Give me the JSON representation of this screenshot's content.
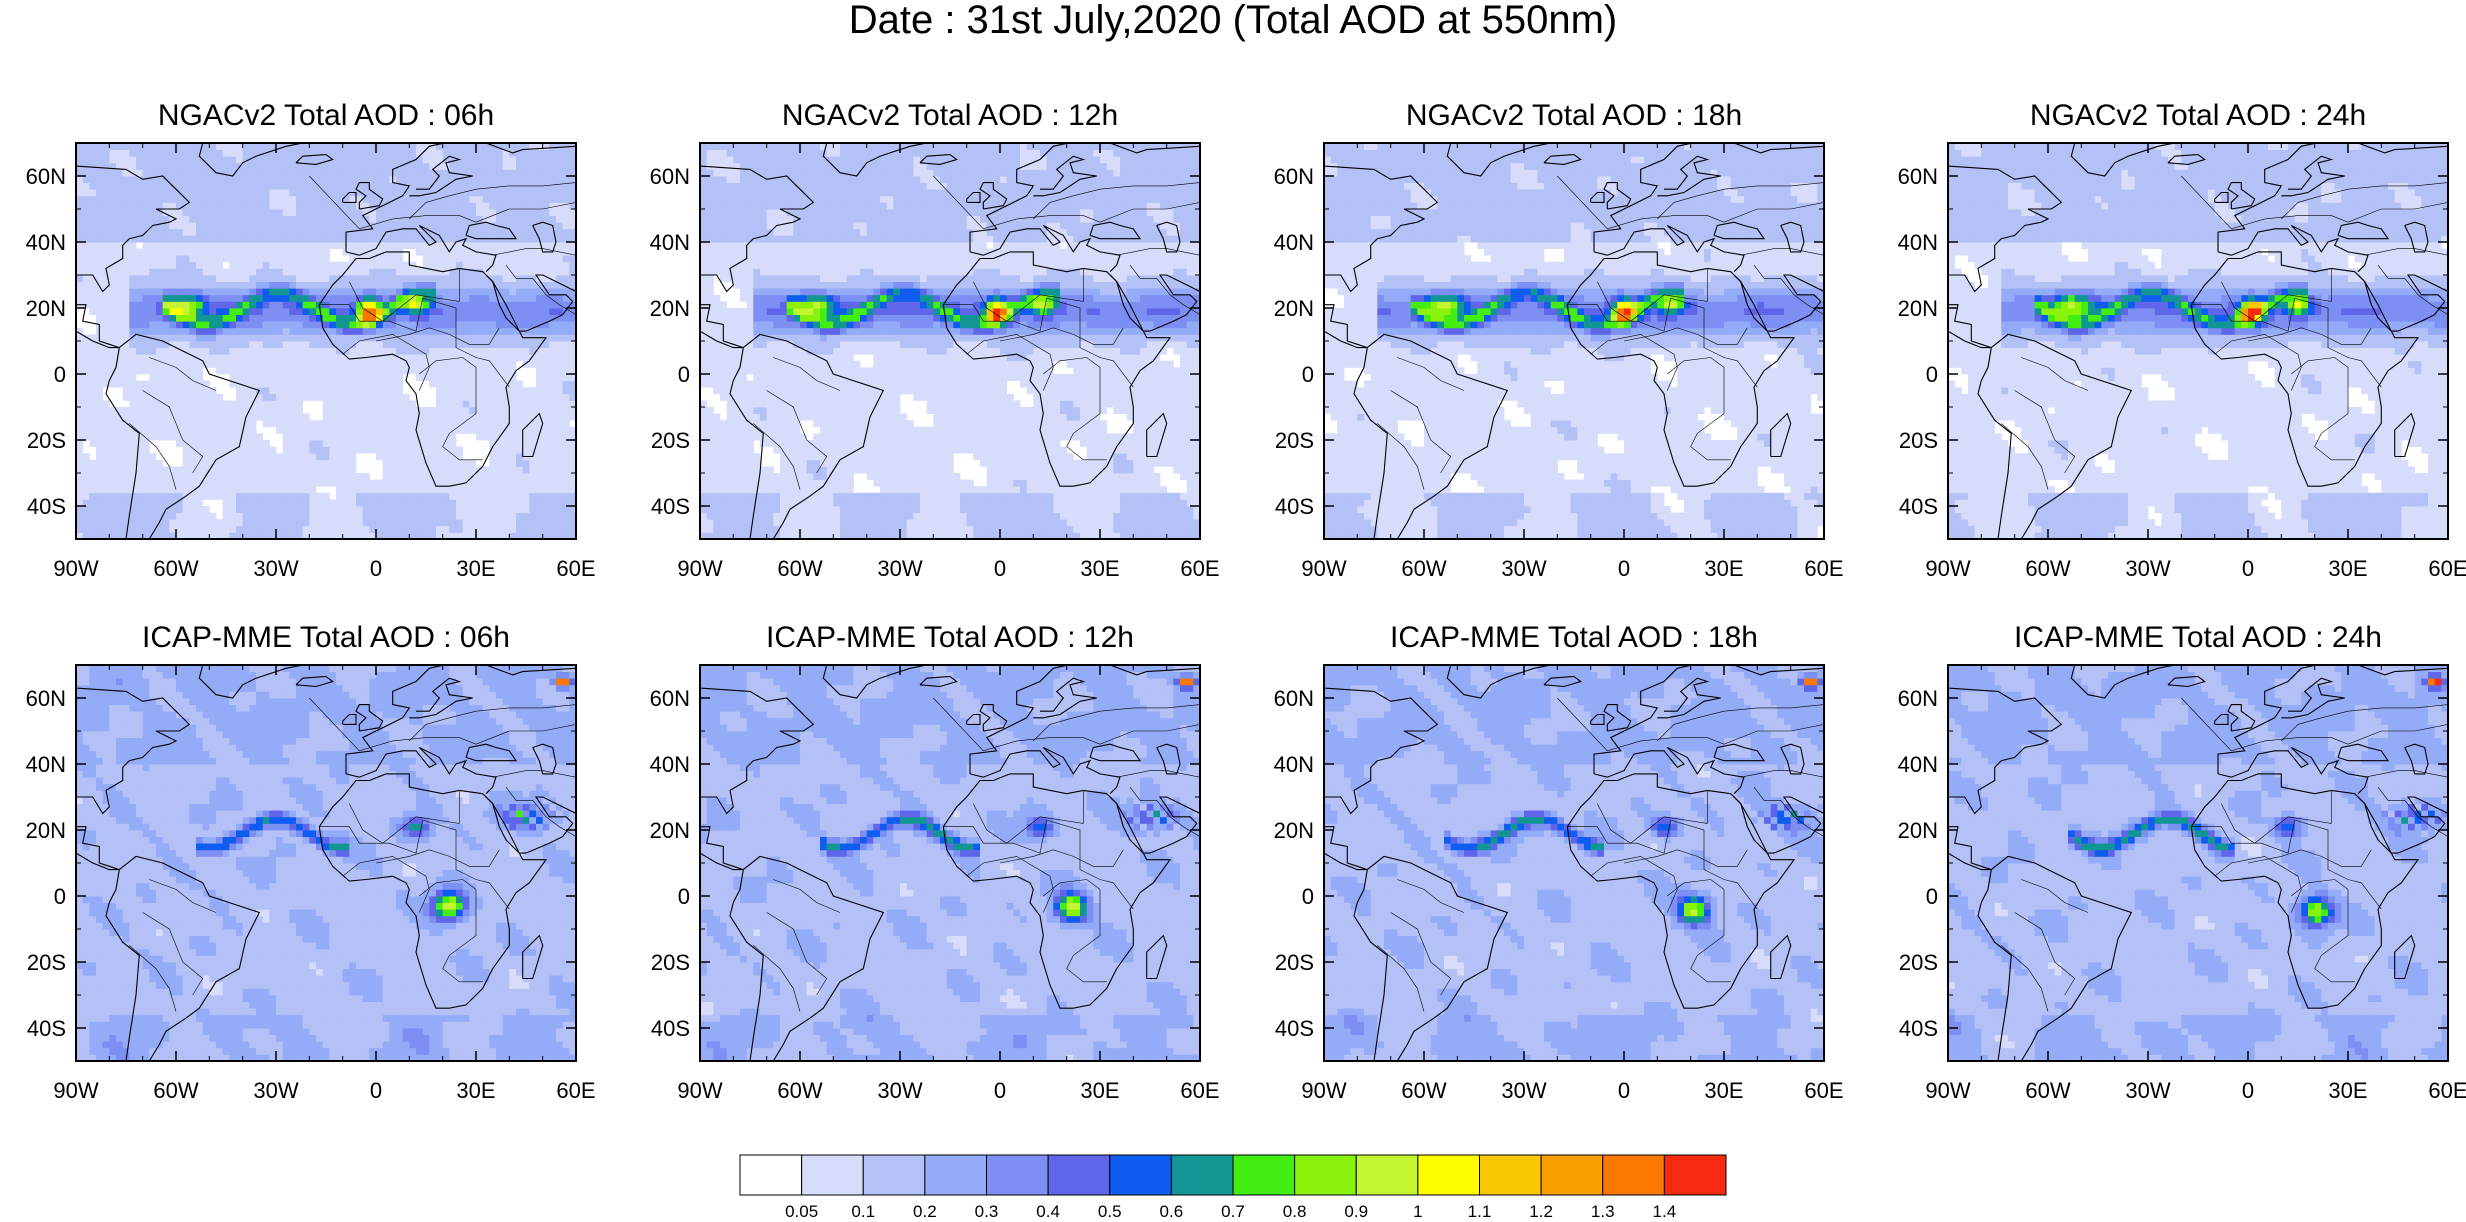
{
  "figure": {
    "title": "Date : 31st July,2020 (Total AOD at 550nm)"
  },
  "panels": [
    {
      "title": "NGACv2 Total AOD : 06h",
      "model": "NGACv2",
      "hour": 6
    },
    {
      "title": "NGACv2 Total AOD : 12h",
      "model": "NGACv2",
      "hour": 12
    },
    {
      "title": "NGACv2 Total AOD : 18h",
      "model": "NGACv2",
      "hour": 18
    },
    {
      "title": "NGACv2 Total AOD : 24h",
      "model": "NGACv2",
      "hour": 24
    },
    {
      "title": "ICAP-MME Total AOD : 06h",
      "model": "ICAP-MME",
      "hour": 6
    },
    {
      "title": "ICAP-MME Total AOD : 12h",
      "model": "ICAP-MME",
      "hour": 12
    },
    {
      "title": "ICAP-MME Total AOD : 18h",
      "model": "ICAP-MME",
      "hour": 18
    },
    {
      "title": "ICAP-MME Total AOD : 24h",
      "model": "ICAP-MME",
      "hour": 24
    }
  ],
  "map": {
    "lon_range": [
      -90,
      60
    ],
    "lat_range": [
      -50,
      70
    ],
    "x_ticks": [
      {
        "value": -90,
        "label": "90W"
      },
      {
        "value": -60,
        "label": "60W"
      },
      {
        "value": -30,
        "label": "30W"
      },
      {
        "value": 0,
        "label": "0"
      },
      {
        "value": 30,
        "label": "30E"
      },
      {
        "value": 60,
        "label": "60E"
      }
    ],
    "y_ticks": [
      {
        "value": 60,
        "label": "60N"
      },
      {
        "value": 40,
        "label": "40N"
      },
      {
        "value": 20,
        "label": "20N"
      },
      {
        "value": 0,
        "label": "0"
      },
      {
        "value": -20,
        "label": "20S"
      },
      {
        "value": -40,
        "label": "40S"
      }
    ]
  },
  "colorbar": {
    "colors": [
      "#ffffff",
      "#d6dcfa",
      "#b3c1f7",
      "#94abf7",
      "#7d8ff2",
      "#5f66ea",
      "#0f5cf0",
      "#129694",
      "#43ee13",
      "#8af20b",
      "#c4f531",
      "#ffff00",
      "#fac800",
      "#fa9f00",
      "#fa7800",
      "#f52a0f"
    ],
    "labels": [
      "0.05",
      "0.1",
      "0.2",
      "0.3",
      "0.4",
      "0.5",
      "0.6",
      "0.7",
      "0.8",
      "0.9",
      "1",
      "1.1",
      "1.2",
      "1.3",
      "1.4"
    ]
  },
  "colors": {
    "land_outline": "#000000",
    "background": "#ffffff"
  }
}
